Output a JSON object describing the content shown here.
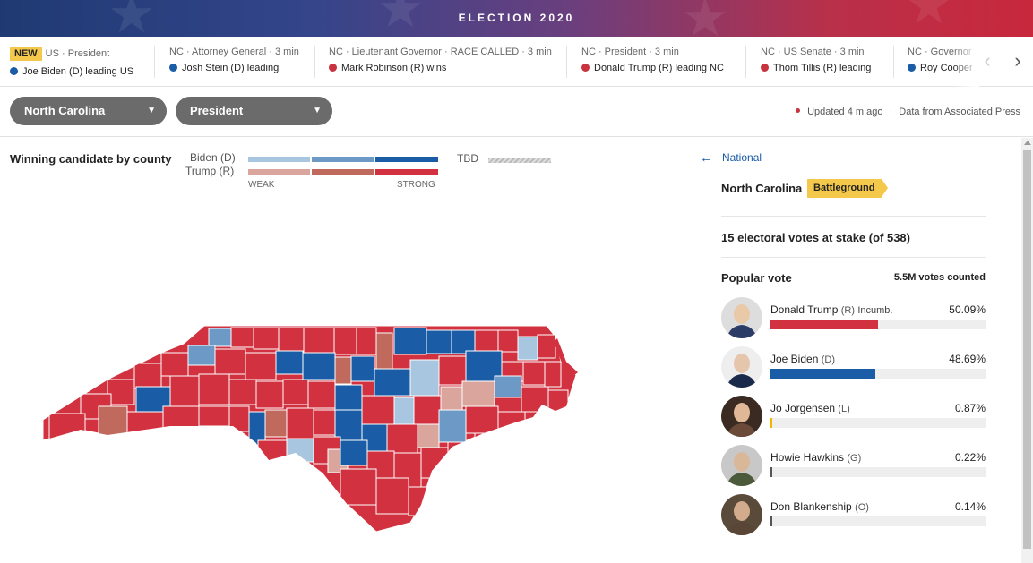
{
  "banner": {
    "title": "ELECTION 2020"
  },
  "ticker": {
    "items": [
      {
        "badge": "NEW",
        "meta": "US · President",
        "party": "d",
        "headline": "Joe Biden (D) leading US"
      },
      {
        "badge": "",
        "meta": "NC · Attorney General · 3 min",
        "party": "d",
        "headline": "Josh Stein (D) leading"
      },
      {
        "badge": "",
        "meta": "NC · Lieutenant Governor · RACE CALLED · 3 min",
        "party": "r",
        "headline": "Mark Robinson (R) wins"
      },
      {
        "badge": "",
        "meta": "NC · President · 3 min",
        "party": "r",
        "headline": "Donald Trump (R) leading NC"
      },
      {
        "badge": "",
        "meta": "NC · US Senate · 3 min",
        "party": "r",
        "headline": "Thom Tillis (R) leading"
      },
      {
        "badge": "",
        "meta": "NC · Governor",
        "party": "d",
        "headline": "Roy Cooper"
      }
    ],
    "prev_icon": "‹",
    "next_icon": "›"
  },
  "selectors": {
    "state": "North Carolina",
    "race": "President",
    "caret": "▼"
  },
  "status": {
    "updated": "Updated 4 m ago",
    "source": "Data from Associated Press"
  },
  "map": {
    "title": "Winning candidate by county",
    "legend_biden": "Biden (D)",
    "legend_trump": "Trump (R)",
    "legend_weak": "WEAK",
    "legend_strong": "STRONG",
    "legend_tbd": "TBD",
    "colors": {
      "d_weak": "#a9c6e0",
      "d_mid": "#6d99c6",
      "d_strong": "#1a5ca6",
      "r_weak": "#d9a59c",
      "r_mid": "#c06a5e",
      "r_strong": "#d2323f",
      "border": "#ffffff"
    }
  },
  "side": {
    "back_label": "National",
    "state_name": "North Carolina",
    "tag": "Battleground",
    "electoral": "15 electoral votes at stake (of 538)",
    "popular_label": "Popular vote",
    "counted": "5.5M votes counted",
    "candidates": [
      {
        "name": "Donald Trump",
        "party": "(R)",
        "note": "Incumb.",
        "pct": "50.09%",
        "share": 50.09,
        "color": "#d2323f"
      },
      {
        "name": "Joe Biden",
        "party": "(D)",
        "note": "",
        "pct": "48.69%",
        "share": 48.69,
        "color": "#1a5ca6"
      },
      {
        "name": "Jo Jorgensen",
        "party": "(L)",
        "note": "",
        "pct": "0.87%",
        "share": 0.87,
        "color": "#f2b500"
      },
      {
        "name": "Howie Hawkins",
        "party": "(G)",
        "note": "",
        "pct": "0.22%",
        "share": 0.22,
        "color": "#555555"
      },
      {
        "name": "Don Blankenship",
        "party": "(O)",
        "note": "",
        "pct": "0.14%",
        "share": 0.14,
        "color": "#555555"
      }
    ]
  }
}
